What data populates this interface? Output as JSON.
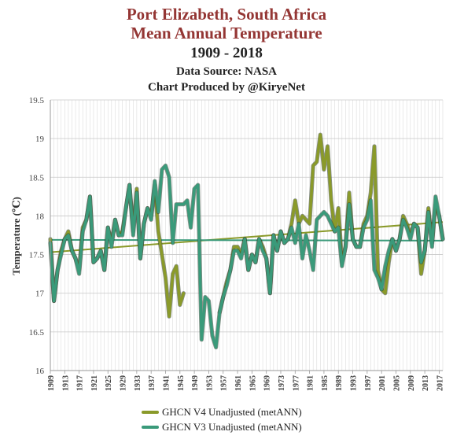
{
  "chart_data": {
    "type": "line",
    "title_lines": [
      "Port Elizabeth, South Africa",
      "Mean Annual Temperature"
    ],
    "subtitle": "1909 - 2018",
    "source_lines": [
      "Data Source: NASA",
      "Chart Produced by @KiryeNet"
    ],
    "ylabel": "Temperature (℃)",
    "xlabel": "",
    "ylim": [
      16,
      19.5
    ],
    "yticks": [
      "16",
      "16.5",
      "17",
      "17.5",
      "18",
      "18.5",
      "19",
      "19.5"
    ],
    "xlim": [
      1909,
      2018
    ],
    "xticks": [
      "1909",
      "1913",
      "1917",
      "1921",
      "1925",
      "1929",
      "1933",
      "1937",
      "1941",
      "1945",
      "1949",
      "1953",
      "1957",
      "1961",
      "1965",
      "1969",
      "1973",
      "1977",
      "1981",
      "1985",
      "1989",
      "1993",
      "1997",
      "2001",
      "2005",
      "2009",
      "2013",
      "2017"
    ],
    "grid": true,
    "legend_position": "bottom",
    "series": [
      {
        "name": "GHCN V4 Unadjusted (metANN)",
        "color": "#8a9a2a",
        "x": [
          1909,
          1910,
          1911,
          1912,
          1913,
          1914,
          1915,
          1916,
          1917,
          1918,
          1919,
          1920,
          1921,
          1922,
          1923,
          1924,
          1925,
          1926,
          1927,
          1928,
          1929,
          1930,
          1931,
          1932,
          1933,
          1934,
          1935,
          1936,
          1937,
          1938,
          1939,
          1940,
          1941,
          1942,
          1943,
          1944,
          1945,
          1946,
          null,
          1956,
          1957,
          1958,
          1959,
          1960,
          1961,
          1962,
          1963,
          1964,
          1965,
          1966,
          1967,
          1968,
          1969,
          1970,
          1971,
          1972,
          1973,
          1974,
          1975,
          1976,
          1977,
          1978,
          1979,
          1980,
          1981,
          1982,
          1983,
          1984,
          1985,
          1986,
          1987,
          1988,
          1989,
          1990,
          1991,
          1992,
          1993,
          1994,
          1995,
          1996,
          1997,
          1998,
          1999,
          2000,
          2001,
          2002,
          2003,
          2004,
          2005,
          2006,
          2007,
          2008,
          2009,
          2010,
          2011,
          2012,
          2013,
          2014,
          2015,
          2016,
          2017,
          2018
        ],
        "values": [
          17.7,
          16.9,
          17.3,
          17.55,
          17.7,
          17.8,
          17.55,
          17.45,
          17.3,
          17.85,
          17.95,
          18.25,
          17.4,
          17.45,
          17.55,
          17.3,
          17.85,
          17.65,
          17.95,
          17.75,
          17.8,
          18.1,
          18.4,
          17.8,
          18.35,
          17.45,
          17.9,
          18.1,
          18.0,
          18.4,
          17.8,
          17.5,
          17.2,
          16.7,
          17.25,
          17.35,
          16.85,
          17.0,
          null,
          16.75,
          16.95,
          17.15,
          17.3,
          17.6,
          17.6,
          17.5,
          17.7,
          17.3,
          17.5,
          17.4,
          17.7,
          17.6,
          17.45,
          17.0,
          17.75,
          17.55,
          17.8,
          17.65,
          17.7,
          17.9,
          18.2,
          17.9,
          18.0,
          17.95,
          17.9,
          18.65,
          18.7,
          19.05,
          18.6,
          18.9,
          18.2,
          17.8,
          18.1,
          17.4,
          17.6,
          18.3,
          17.7,
          17.6,
          17.6,
          17.9,
          18.0,
          18.3,
          18.9,
          17.3,
          17.05,
          17.0,
          17.4,
          17.7,
          17.55,
          17.7,
          18.0,
          17.9,
          17.75,
          17.9,
          17.85,
          17.25,
          17.55,
          18.1,
          17.65,
          18.15,
          18.0,
          17.7
        ]
      },
      {
        "name": "GHCN V3 Unadjusted (metANN)",
        "color": "#3a9a7a",
        "x": [
          1909,
          1910,
          1911,
          1912,
          1913,
          1914,
          1915,
          1916,
          1917,
          1918,
          1919,
          1920,
          1921,
          1922,
          1923,
          1924,
          1925,
          1926,
          1927,
          1928,
          1929,
          1930,
          1931,
          1932,
          1933,
          1934,
          1935,
          1936,
          1937,
          1938,
          1939,
          1940,
          1941,
          1942,
          1943,
          1944,
          1945,
          1946,
          1947,
          1948,
          1949,
          1950,
          1951,
          1952,
          1953,
          1954,
          1955,
          1956,
          1957,
          1958,
          1959,
          1960,
          1961,
          1962,
          1963,
          1964,
          1965,
          1966,
          1967,
          1968,
          1969,
          1970,
          1971,
          1972,
          1973,
          1974,
          1975,
          1976,
          1977,
          1978,
          1979,
          1980,
          1981,
          1982,
          1983,
          1984,
          1985,
          1986,
          1987,
          1988,
          1989,
          1990,
          1991,
          1992,
          1993,
          1994,
          1995,
          1996,
          1997,
          1998,
          1999,
          2000,
          2001,
          2002,
          2003,
          2004,
          2005,
          2006,
          2007,
          2008,
          2009,
          2010,
          2011,
          2012,
          2013,
          2014,
          2015,
          2016,
          2017,
          2018
        ],
        "values": [
          17.65,
          16.9,
          17.3,
          17.5,
          17.7,
          17.75,
          17.55,
          17.45,
          17.25,
          17.8,
          17.95,
          18.25,
          17.4,
          17.45,
          17.55,
          17.3,
          17.85,
          17.6,
          17.95,
          17.75,
          17.75,
          18.1,
          18.4,
          17.75,
          18.3,
          17.45,
          17.9,
          18.1,
          17.95,
          18.45,
          18.05,
          18.6,
          18.65,
          18.5,
          17.65,
          18.15,
          18.15,
          18.15,
          18.2,
          17.85,
          18.35,
          18.4,
          16.4,
          16.95,
          16.9,
          16.45,
          16.3,
          16.75,
          16.95,
          17.1,
          17.3,
          17.55,
          17.55,
          17.45,
          17.7,
          17.3,
          17.5,
          17.4,
          17.7,
          17.55,
          17.45,
          17.0,
          17.75,
          17.55,
          17.8,
          17.65,
          17.7,
          17.85,
          17.65,
          17.9,
          17.45,
          17.75,
          17.55,
          17.3,
          17.95,
          18.0,
          18.05,
          18.0,
          17.9,
          17.8,
          17.85,
          17.35,
          17.6,
          18.15,
          17.7,
          17.6,
          17.6,
          17.85,
          17.95,
          18.2,
          17.3,
          17.2,
          17.05,
          17.35,
          17.55,
          17.7,
          17.55,
          17.7,
          17.95,
          17.85,
          17.7,
          17.9,
          17.85,
          17.4,
          17.55,
          18.05,
          17.6,
          18.25,
          18.0,
          17.7
        ]
      }
    ],
    "trendlines": [
      {
        "series": "GHCN V4 Unadjusted (metANN)",
        "color": "#8a9a2a",
        "x": [
          1909,
          2018
        ],
        "values": [
          17.53,
          17.92
        ]
      },
      {
        "series": "GHCN V3 Unadjusted (metANN)",
        "color": "#3a9a7a",
        "x": [
          1909,
          2018
        ],
        "values": [
          17.69,
          17.68
        ]
      }
    ]
  }
}
